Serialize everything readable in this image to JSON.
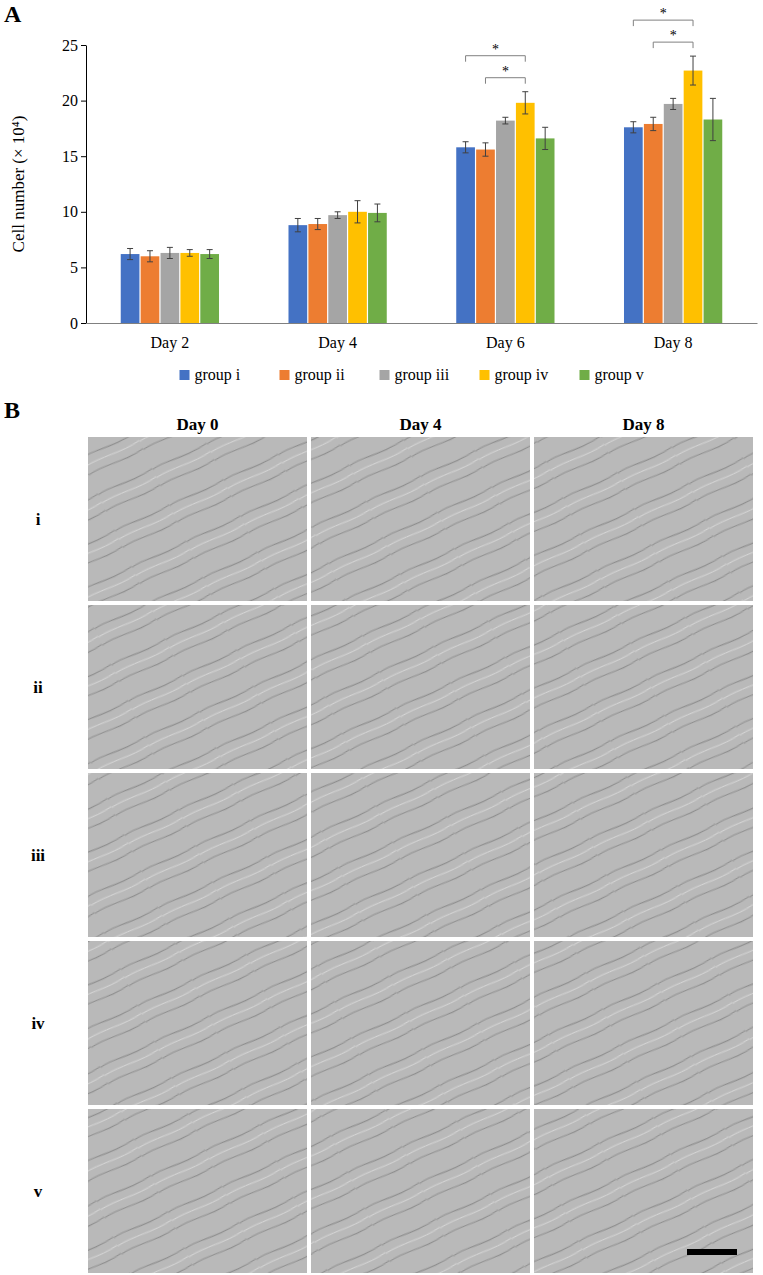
{
  "chart_data": {
    "type": "bar",
    "panel_label": "A",
    "y_label": "Cell number (× 10⁴)",
    "categories": [
      "Day 2",
      "Day 4",
      "Day 6",
      "Day 8"
    ],
    "series": [
      {
        "name": "group i",
        "color": "#4472c4",
        "values": [
          6.2,
          8.8,
          15.8,
          17.6
        ],
        "errors": [
          0.5,
          0.6,
          0.5,
          0.5
        ]
      },
      {
        "name": "group ii",
        "color": "#ed7d31",
        "values": [
          6.0,
          8.9,
          15.6,
          17.9
        ],
        "errors": [
          0.5,
          0.5,
          0.6,
          0.6
        ]
      },
      {
        "name": "group iii",
        "color": "#a5a5a5",
        "values": [
          6.3,
          9.7,
          18.2,
          19.7
        ],
        "errors": [
          0.5,
          0.3,
          0.3,
          0.5
        ]
      },
      {
        "name": "group iv",
        "color": "#ffc000",
        "values": [
          6.3,
          10.0,
          19.8,
          22.7
        ],
        "errors": [
          0.3,
          1.0,
          1.0,
          1.3
        ]
      },
      {
        "name": "group v",
        "color": "#70ad47",
        "values": [
          6.2,
          9.9,
          16.6,
          18.3
        ],
        "errors": [
          0.4,
          0.8,
          1.0,
          1.9
        ]
      }
    ],
    "ylim": [
      0,
      25
    ],
    "yticks": [
      0,
      5,
      10,
      15,
      20,
      25
    ],
    "legend": "bottom",
    "significance": [
      {
        "category": "Day 6",
        "from": "group ii",
        "to": "group iv",
        "label": "*"
      },
      {
        "category": "Day 6",
        "from": "group i",
        "to": "group iv",
        "label": "*"
      },
      {
        "category": "Day 8",
        "from": "group ii",
        "to": "group iv",
        "label": "*"
      },
      {
        "category": "Day 8",
        "from": "group i",
        "to": "group iv",
        "label": "*"
      }
    ]
  },
  "panel_b": {
    "label": "B",
    "columns": [
      "Day 0",
      "Day 4",
      "Day 8"
    ],
    "rows": [
      "i",
      "ii",
      "iii",
      "iv",
      "v"
    ]
  }
}
